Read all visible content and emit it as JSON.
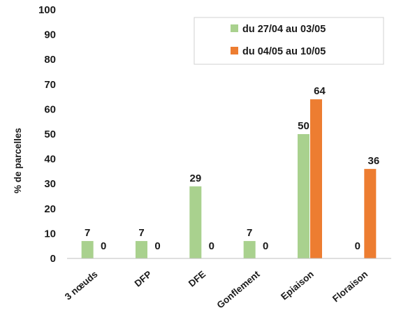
{
  "chart_data": {
    "type": "bar",
    "categories": [
      "3 nœuds",
      "DFP",
      "DFE",
      "Gonflement",
      "Epiaison",
      "Floraison"
    ],
    "series": [
      {
        "name": "du 27/04 au 03/05",
        "color": "#a9d18e",
        "values": [
          7,
          7,
          29,
          7,
          50,
          0
        ]
      },
      {
        "name": "du 04/05 au 10/05",
        "color": "#ed7d31",
        "values": [
          0,
          0,
          0,
          0,
          64,
          36
        ]
      }
    ],
    "ylabel": "% de parcelles",
    "ylim": [
      0,
      100
    ],
    "yticks": [
      0,
      10,
      20,
      30,
      40,
      50,
      60,
      70,
      80,
      90,
      100
    ],
    "legend": "top-right",
    "grid": false
  }
}
